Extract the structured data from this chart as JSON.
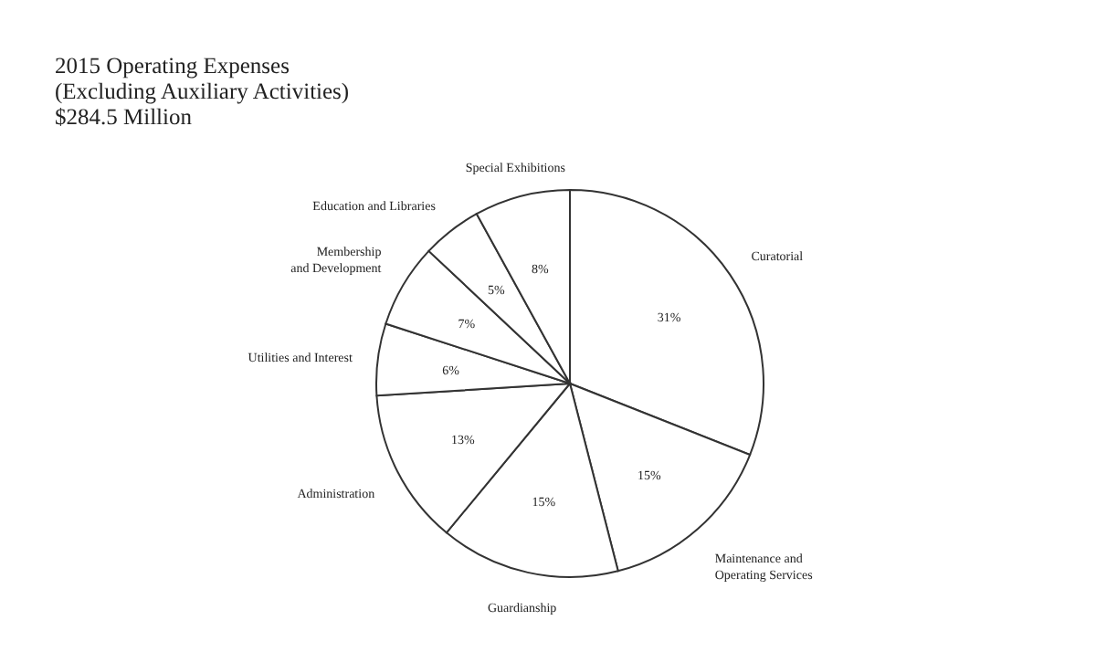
{
  "chart_data": {
    "type": "pie",
    "title": "2015 Operating Expenses",
    "subtitle": "(Excluding Auxiliary Activities)\n$284.5 Million",
    "categories": [
      "Curatorial",
      "Maintenance and\nOperating Services",
      "Guardianship",
      "Administration",
      "Utilities and Interest",
      "Membership\nand Development",
      "Education and Libraries",
      "Special Exhibitions"
    ],
    "values": [
      31,
      15,
      15,
      13,
      6,
      7,
      5,
      8
    ],
    "value_labels": [
      "31%",
      "15%",
      "15%",
      "13%",
      "6%",
      "7%",
      "5%",
      "8%"
    ],
    "colors": [
      "#ffffff",
      "#ffffff",
      "#ffffff",
      "#ffffff",
      "#ffffff",
      "#ffffff",
      "#ffffff",
      "#ffffff"
    ]
  }
}
